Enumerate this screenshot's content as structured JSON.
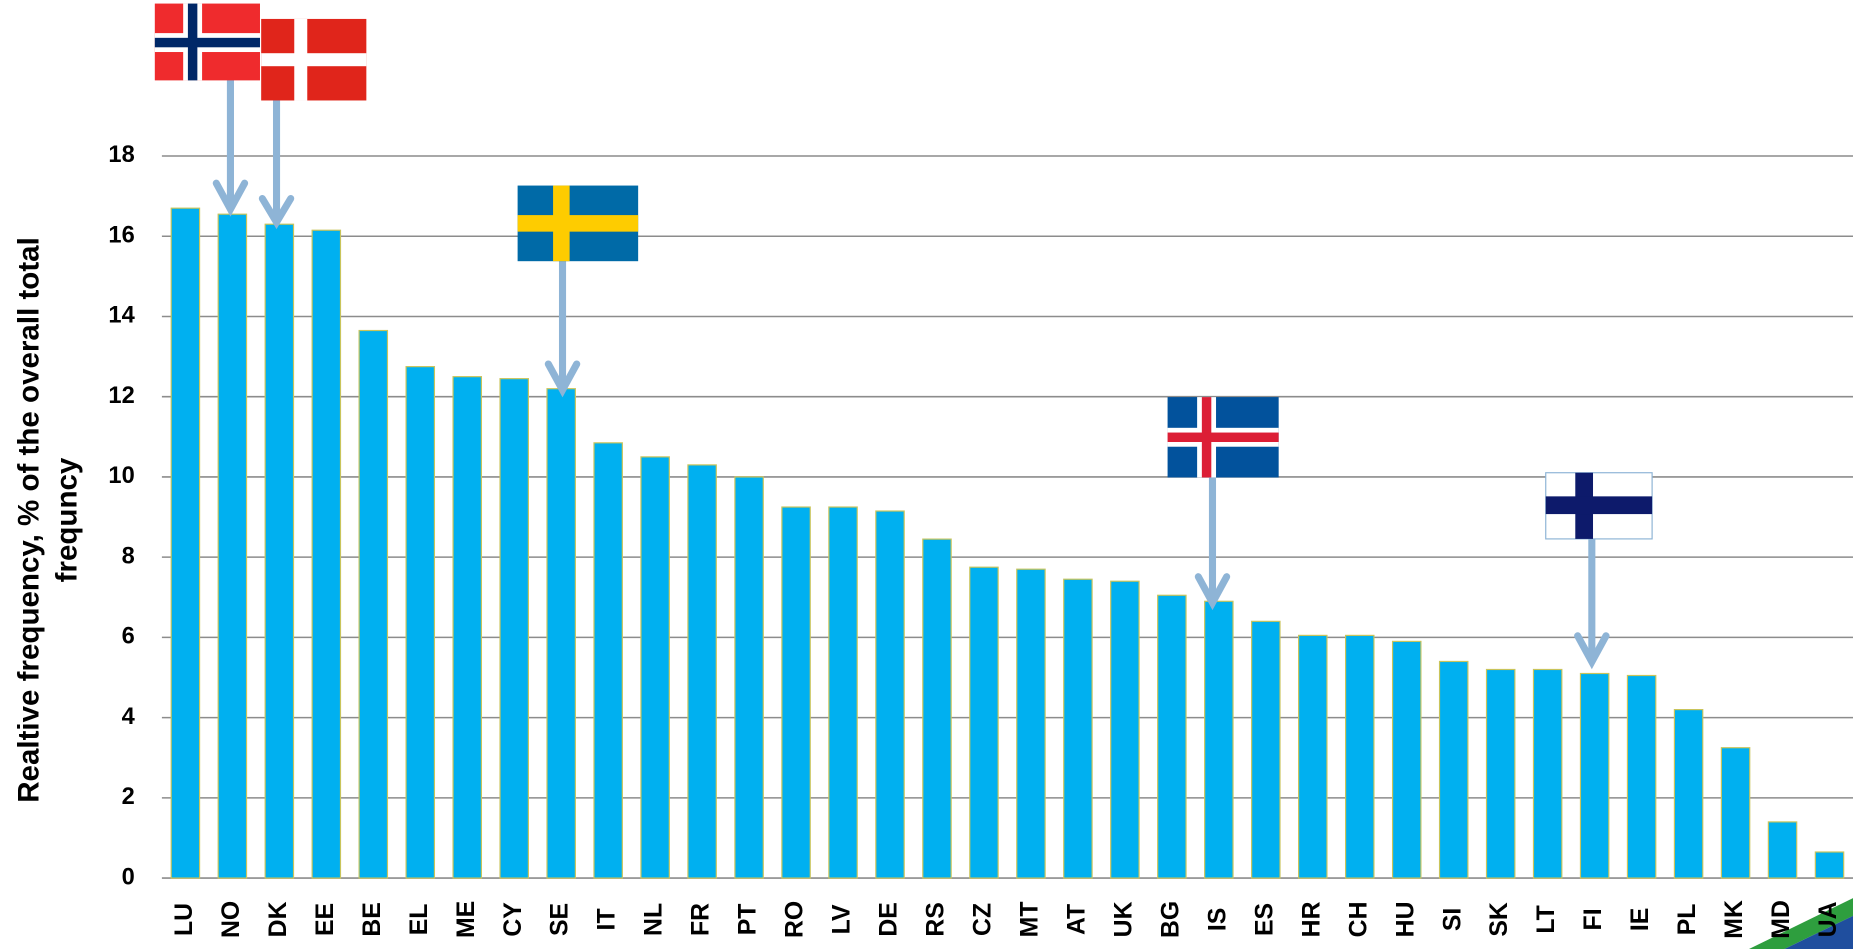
{
  "chart_data": {
    "type": "bar",
    "y_label": [
      "Realtive frequency, % of the overall total",
      "frequncy"
    ],
    "categories": [
      "LU",
      "NO",
      "DK",
      "EE",
      "BE",
      "EL",
      "ME",
      "CY",
      "SE",
      "IT",
      "NL",
      "FR",
      "PT",
      "RO",
      "LV",
      "DE",
      "RS",
      "CZ",
      "MT",
      "AT",
      "UK",
      "BG",
      "IS",
      "ES",
      "HR",
      "CH",
      "HU",
      "SI",
      "SK",
      "LT",
      "FI",
      "IE",
      "PL",
      "MK",
      "MD",
      "UA"
    ],
    "values": [
      16.7,
      16.55,
      16.3,
      16.15,
      13.65,
      12.75,
      12.5,
      12.45,
      12.2,
      10.85,
      10.5,
      10.3,
      10.0,
      9.25,
      9.25,
      9.15,
      8.45,
      7.75,
      7.7,
      7.45,
      7.4,
      7.05,
      6.9,
      6.4,
      6.05,
      6.05,
      5.9,
      5.4,
      5.2,
      5.2,
      5.1,
      5.05,
      4.2,
      3.25,
      1.4,
      0.65
    ],
    "color": "#00b0f0",
    "ylim": [
      0,
      18
    ],
    "yticks": [
      0,
      2,
      4,
      6,
      8,
      10,
      12,
      14,
      16,
      18
    ],
    "grid": true
  }
}
